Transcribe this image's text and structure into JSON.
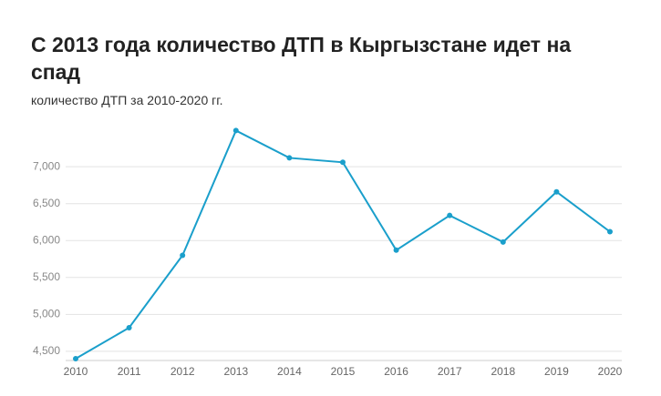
{
  "chart_data": {
    "type": "line",
    "title": "С 2013 года количество ДТП в Кыргызстане идет на спад",
    "subtitle": "количество ДТП за 2010-2020 гг.",
    "x": [
      2010,
      2011,
      2012,
      2013,
      2014,
      2015,
      2016,
      2017,
      2018,
      2019,
      2020
    ],
    "xlim": [
      2010,
      2020
    ],
    "xticks": [
      2010,
      2011,
      2012,
      2013,
      2014,
      2015,
      2016,
      2017,
      2018,
      2019,
      2020
    ],
    "series": [
      {
        "color": "#1a9fcb",
        "values": [
          4400,
          4820,
          5800,
          7490,
          7120,
          7060,
          5870,
          6340,
          5980,
          6660,
          6120
        ]
      }
    ],
    "ylim": [
      4400,
      7520
    ],
    "yticks": [
      {
        "value": 4500,
        "label": "4,500"
      },
      {
        "value": 5000,
        "label": "5,000"
      },
      {
        "value": 5500,
        "label": "5,500"
      },
      {
        "value": 6000,
        "label": "6,000"
      },
      {
        "value": 6500,
        "label": "6,500"
      },
      {
        "value": 7000,
        "label": "7,000"
      }
    ],
    "grid": true
  }
}
